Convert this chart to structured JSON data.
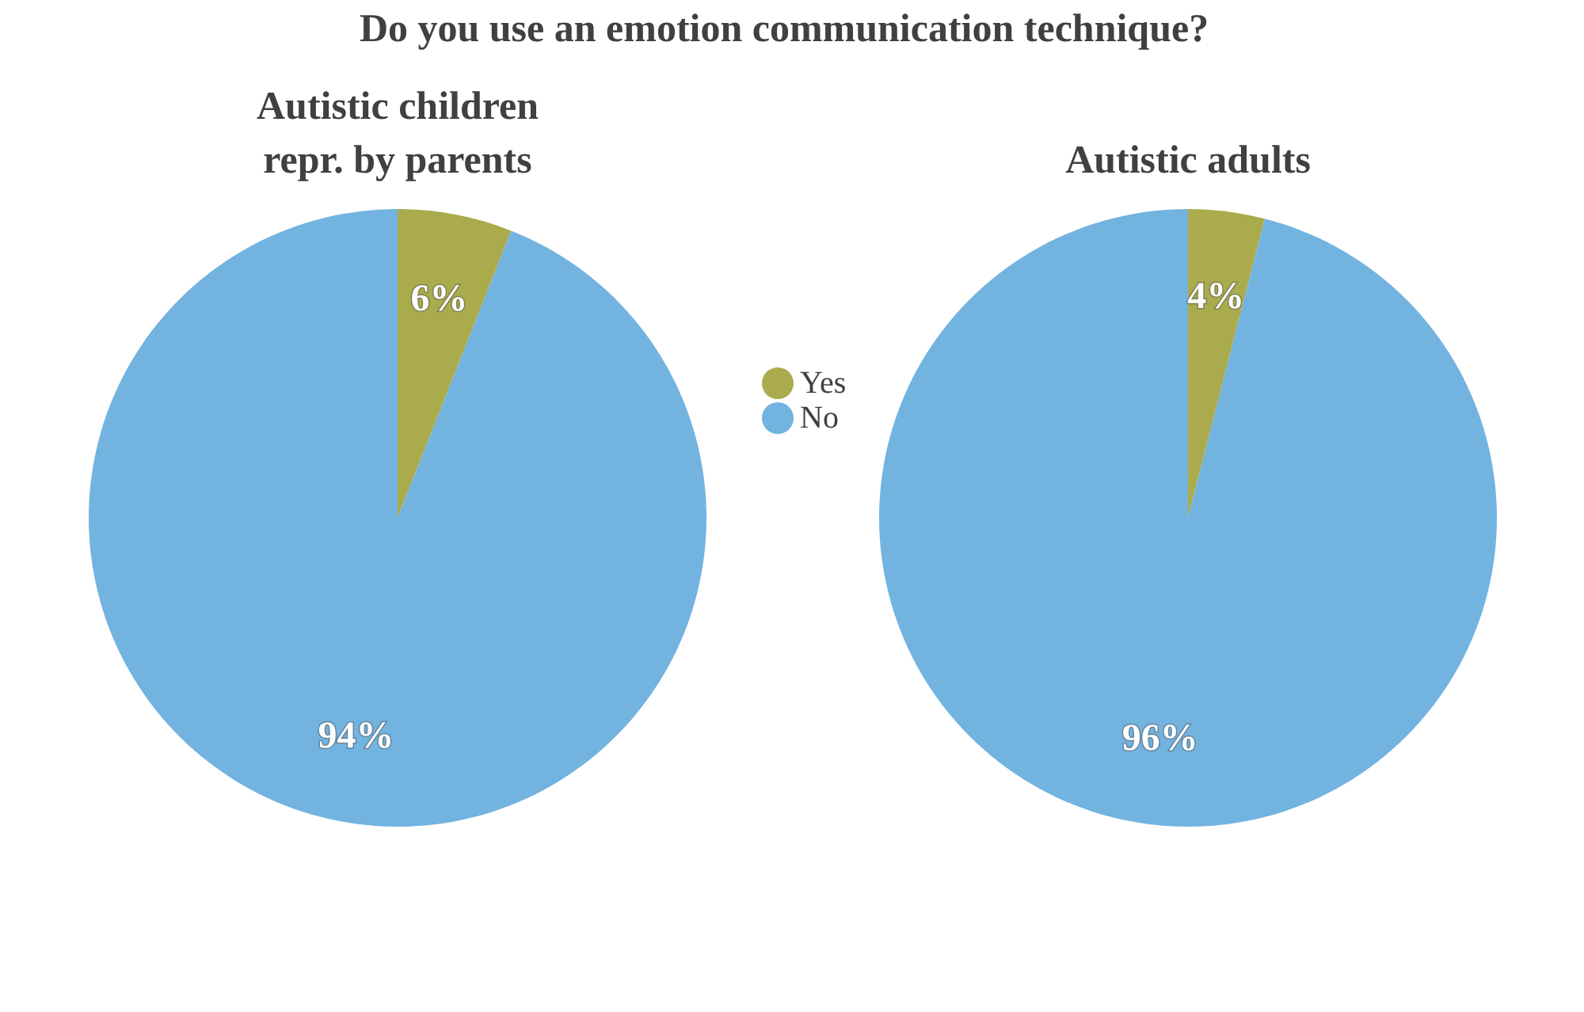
{
  "chart_data": [
    {
      "type": "other",
      "title": "Do you use an emotion communication technique?"
    },
    {
      "type": "pie",
      "title": "Autistic children repr. by parents",
      "categories": [
        "Yes",
        "No"
      ],
      "values": [
        6,
        94
      ],
      "colors": [
        "#aaab4d",
        "#72b3e0"
      ],
      "value_labels": [
        "6%",
        "94%"
      ],
      "legend": "right"
    },
    {
      "type": "pie",
      "title": "Autistic adults",
      "categories": [
        null,
        null
      ],
      "values": [
        4,
        96
      ],
      "colors": [
        "#aaab4d",
        "#72b3e0"
      ],
      "value_labels": [
        "4%",
        "96%"
      ]
    }
  ]
}
